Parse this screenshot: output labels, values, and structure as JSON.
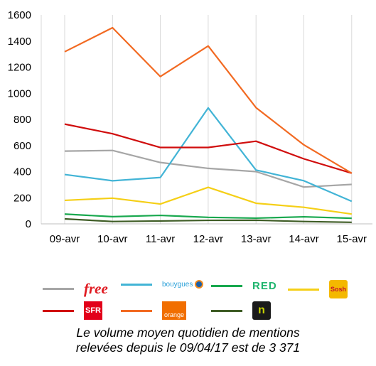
{
  "chart_data": {
    "type": "line",
    "categories": [
      "09-avr",
      "10-avr",
      "11-avr",
      "12-avr",
      "13-avr",
      "14-avr",
      "15-avr"
    ],
    "ylim": [
      0,
      1600
    ],
    "yticks": [
      0,
      200,
      400,
      600,
      800,
      1000,
      1200,
      1400,
      1600
    ],
    "ytick_labels": [
      "0",
      "200",
      "400",
      "600",
      "800",
      "1000",
      "1200",
      "1400",
      "1600"
    ],
    "grid": "vertical",
    "legend_position": "bottom",
    "series": [
      {
        "id": "free",
        "color": "#a6a6a6",
        "values": [
          557,
          562,
          470,
          425,
          400,
          282,
          302
        ]
      },
      {
        "id": "bouygues",
        "color": "#42b4d6",
        "values": [
          378,
          330,
          355,
          888,
          412,
          330,
          173
        ]
      },
      {
        "id": "red",
        "color": "#18a84e",
        "values": [
          75,
          55,
          65,
          50,
          44,
          54,
          43
        ]
      },
      {
        "id": "sosh",
        "color": "#f5cf16",
        "values": [
          180,
          197,
          152,
          280,
          158,
          127,
          75
        ]
      },
      {
        "id": "sfr",
        "color": "#d00d0d",
        "values": [
          764,
          690,
          585,
          585,
          633,
          498,
          388
        ]
      },
      {
        "id": "orange",
        "color": "#f26a22",
        "values": [
          1318,
          1502,
          1128,
          1362,
          890,
          605,
          388
        ]
      },
      {
        "id": "nrj",
        "color": "#3e5c25",
        "values": [
          38,
          18,
          22,
          27,
          28,
          18,
          12
        ]
      }
    ]
  },
  "legend": {
    "items": [
      {
        "icon": "free-logo",
        "color": "#a6a6a6",
        "logo_text": "free"
      },
      {
        "icon": "bouygues-logo",
        "color": "#42b4d6",
        "logo_text": "bouygues"
      },
      {
        "icon": "red-logo",
        "color": "#18a84e",
        "logo_text": "RED"
      },
      {
        "icon": "sosh-logo",
        "color": "#f5cf16",
        "logo_text": "Sosh"
      },
      {
        "icon": "sfr-logo",
        "color": "#d00d0d",
        "logo_text": "SFR"
      },
      {
        "icon": "orange-logo",
        "color": "#f26a22",
        "logo_text": "orange"
      },
      {
        "icon": "nrj-logo",
        "color": "#3e5c25",
        "logo_text": "n"
      }
    ]
  },
  "footnote": {
    "line1": "Le volume moyen quotidien de mentions",
    "line2": "relevées depuis le 09/04/17 est de 3 371"
  }
}
